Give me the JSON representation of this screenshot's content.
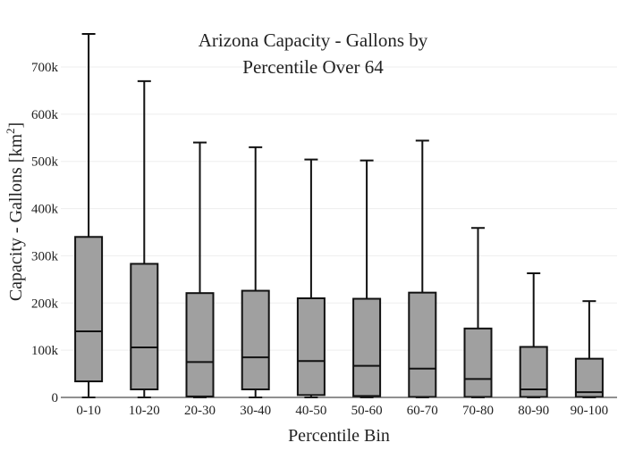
{
  "chart_data": {
    "type": "box",
    "title_line1": "Arizona Capacity - Gallons by",
    "title_line2": "Percentile Over 64",
    "xlabel": "Percentile Bin",
    "ylabel_main": "Capacity - Gallons  [km",
    "ylabel_sup": "2",
    "ylabel_close": "]",
    "ylim": [
      0,
      770000
    ],
    "yticks": [
      0,
      100000,
      200000,
      300000,
      400000,
      500000,
      600000,
      700000
    ],
    "ytick_labels": [
      "0",
      "100k",
      "200k",
      "300k",
      "400k",
      "500k",
      "600k",
      "700k"
    ],
    "grid": true,
    "box_color": "#a0a0a0",
    "line_color": "#111111",
    "categories": [
      "0-10",
      "10-20",
      "20-30",
      "30-40",
      "40-50",
      "50-60",
      "60-70",
      "70-80",
      "80-90",
      "90-100"
    ],
    "boxes": [
      {
        "min": 0,
        "q1": 34000,
        "median": 140000,
        "q3": 340000,
        "max": 770000
      },
      {
        "min": 0,
        "q1": 17000,
        "median": 106000,
        "q3": 283000,
        "max": 670000
      },
      {
        "min": 0,
        "q1": 2000,
        "median": 75000,
        "q3": 221000,
        "max": 540000
      },
      {
        "min": 0,
        "q1": 17000,
        "median": 85000,
        "q3": 226000,
        "max": 530000
      },
      {
        "min": 0,
        "q1": 5000,
        "median": 77000,
        "q3": 210000,
        "max": 504000
      },
      {
        "min": 0,
        "q1": 3000,
        "median": 67000,
        "q3": 209000,
        "max": 502000
      },
      {
        "min": 0,
        "q1": 1000,
        "median": 61000,
        "q3": 222000,
        "max": 544000
      },
      {
        "min": 0,
        "q1": 1000,
        "median": 39000,
        "q3": 146000,
        "max": 359000
      },
      {
        "min": 0,
        "q1": 1000,
        "median": 17000,
        "q3": 107000,
        "max": 263000
      },
      {
        "min": 0,
        "q1": 1000,
        "median": 11000,
        "q3": 82000,
        "max": 204000
      }
    ]
  }
}
